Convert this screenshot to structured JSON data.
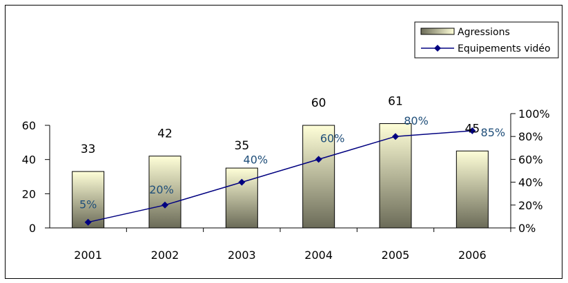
{
  "chart_data": {
    "type": "bar",
    "categories": [
      "2001",
      "2002",
      "2003",
      "2004",
      "2005",
      "2006"
    ],
    "series": [
      {
        "name": "Agressions",
        "type": "bar",
        "axis": "left",
        "values": [
          33,
          42,
          35,
          60,
          61,
          45
        ],
        "labels": [
          "33",
          "42",
          "35",
          "60",
          "61",
          "45"
        ]
      },
      {
        "name": "Equipements vidéo",
        "type": "line",
        "axis": "right",
        "values": [
          5,
          20,
          40,
          60,
          80,
          85
        ],
        "labels": [
          "5%",
          "20%",
          "40%",
          "60%",
          "80%",
          "85%"
        ]
      }
    ],
    "y_left": {
      "ylim": [
        0,
        60
      ],
      "ticks": [
        0,
        20,
        40,
        60
      ],
      "tick_labels": [
        "0",
        "20",
        "40",
        "60"
      ]
    },
    "y_right": {
      "ylim": [
        0,
        100
      ],
      "ticks": [
        0,
        20,
        40,
        60,
        80,
        100
      ],
      "tick_labels": [
        "0%",
        "20%",
        "40%",
        "60%",
        "80%",
        "100%"
      ]
    },
    "legend": {
      "placement": "top-right",
      "items": [
        "Agressions",
        "Equipements vidéo"
      ]
    },
    "grid": false,
    "colors": {
      "line": "#000080",
      "label": "#1f4e79",
      "bar_top": "#ffffd8",
      "bar_bottom": "#6b6b58"
    }
  }
}
